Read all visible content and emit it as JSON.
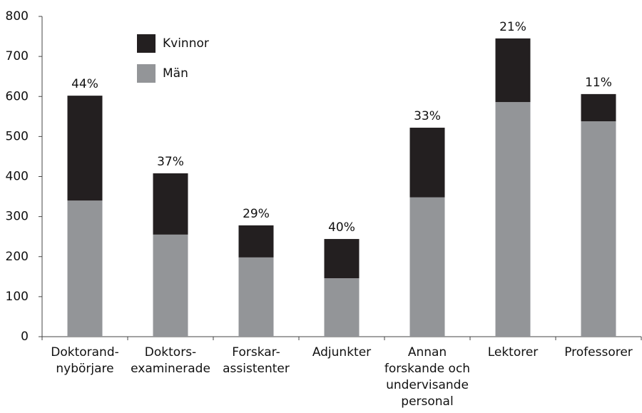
{
  "chart_data": {
    "type": "stacked_bar",
    "categories": [
      [
        "Doktorand-",
        "nybörjare"
      ],
      [
        "Doktors-",
        "examinerade"
      ],
      [
        "Forskar-",
        "assistenter"
      ],
      [
        "Adjunkter"
      ],
      [
        "Annan",
        "forskande och",
        "undervisande",
        "personal"
      ],
      [
        "Lektorer"
      ],
      [
        "Professorer"
      ]
    ],
    "series": [
      {
        "name": "Män",
        "color": "#939598",
        "values": [
          340,
          255,
          198,
          146,
          348,
          586,
          538
        ]
      },
      {
        "name": "Kvinnor",
        "color": "#231f20",
        "values": [
          262,
          153,
          80,
          98,
          174,
          159,
          68
        ]
      }
    ],
    "annotations": [
      "44%",
      "37%",
      "29%",
      "40%",
      "33%",
      "21%",
      "11%"
    ],
    "ylim": [
      0,
      800
    ],
    "yticks": [
      0,
      100,
      200,
      300,
      400,
      500,
      600,
      700,
      800
    ],
    "grid": false
  }
}
